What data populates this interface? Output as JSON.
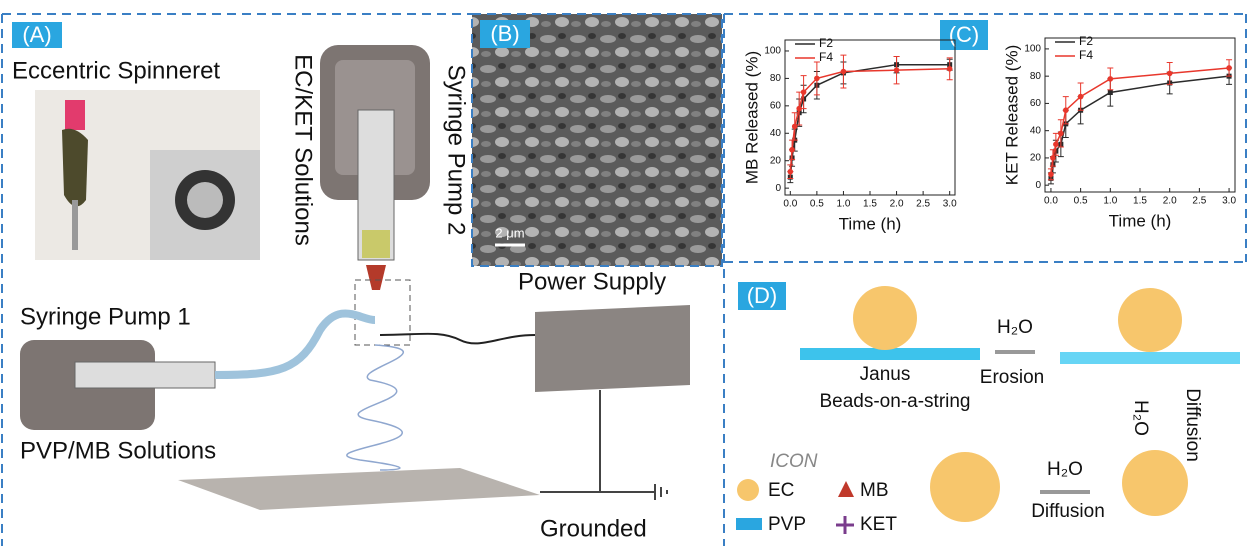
{
  "panels": {
    "a": "(A)",
    "b": "(B)",
    "c": "(C)",
    "d": "(D)"
  },
  "panel_a": {
    "spinneret": "Eccentric Spinneret",
    "pump1": "Syringe Pump 1",
    "pump2": "Syringe Pump 2",
    "solution1": "PVP/MB Solutions",
    "solution2": "EC/KET Solutions",
    "power": "Power Supply",
    "ground": "Grounded"
  },
  "panel_b": {
    "scale_bar": "2 μm"
  },
  "panel_d": {
    "water1": "H₂O",
    "water2": "H₂O",
    "water3": "H₂O",
    "janus": "Janus",
    "beads": "Beads-on-a-string",
    "erosion": "Erosion",
    "diffusion1": "Diffusion",
    "diffusion2": "Diffusion",
    "icon": "ICON",
    "ec": "EC",
    "mb": "MB",
    "pvp": "PVP",
    "ket": "KET"
  },
  "chart_data": [
    {
      "type": "line",
      "y_label": "MB Released (%)",
      "x_label": "Time (h)",
      "x": [
        0.0,
        0.033,
        0.083,
        0.167,
        0.25,
        0.5,
        1.0,
        2.0,
        3.0
      ],
      "series": [
        {
          "name": "F2",
          "color": "#2b2b2b",
          "values": [
            8,
            22,
            35,
            55,
            65,
            75,
            84,
            90,
            90
          ],
          "errors": [
            4,
            6,
            8,
            10,
            10,
            10,
            8,
            6,
            4
          ]
        },
        {
          "name": "F4",
          "color": "#e8372c",
          "values": [
            12,
            28,
            45,
            58,
            70,
            80,
            85,
            86,
            87
          ],
          "errors": [
            5,
            7,
            10,
            12,
            12,
            12,
            12,
            10,
            8
          ]
        }
      ],
      "xlim": [
        -0.1,
        3.1
      ],
      "ylim": [
        -5,
        108
      ],
      "xticks": [
        {
          "value": 0,
          "label": "0.0"
        },
        {
          "value": 0.5,
          "label": "0.5"
        },
        {
          "value": 1,
          "label": "1.0"
        },
        {
          "value": 1.5,
          "label": "1.5"
        },
        {
          "value": 2,
          "label": "2.0"
        },
        {
          "value": 2.5,
          "label": "2.5"
        },
        {
          "value": 3,
          "label": "3.0"
        }
      ],
      "yticks": [
        0,
        20,
        40,
        60,
        80,
        100
      ]
    },
    {
      "type": "line",
      "y_label": "KET Released (%)",
      "x_label": "Time (h)",
      "x": [
        0.0,
        0.033,
        0.083,
        0.167,
        0.25,
        0.5,
        1.0,
        2.0,
        3.0
      ],
      "series": [
        {
          "name": "F2",
          "color": "#2b2b2b",
          "values": [
            5,
            15,
            25,
            30,
            45,
            55,
            68,
            75,
            80
          ],
          "errors": [
            4,
            6,
            8,
            9,
            10,
            10,
            10,
            8,
            6
          ]
        },
        {
          "name": "F4",
          "color": "#e8372c",
          "values": [
            8,
            20,
            30,
            38,
            55,
            65,
            78,
            82,
            86
          ],
          "errors": [
            4,
            6,
            8,
            10,
            10,
            10,
            8,
            8,
            6
          ]
        }
      ],
      "xlim": [
        -0.1,
        3.1
      ],
      "ylim": [
        -5,
        108
      ],
      "xticks": [
        {
          "value": 0,
          "label": "0.0"
        },
        {
          "value": 0.5,
          "label": "0.5"
        },
        {
          "value": 1,
          "label": "1.0"
        },
        {
          "value": 1.5,
          "label": "1.5"
        },
        {
          "value": 2,
          "label": "2.0"
        },
        {
          "value": 2.5,
          "label": "2.5"
        },
        {
          "value": 3,
          "label": "3.0"
        }
      ],
      "yticks": [
        0,
        20,
        40,
        60,
        80,
        100
      ]
    }
  ]
}
